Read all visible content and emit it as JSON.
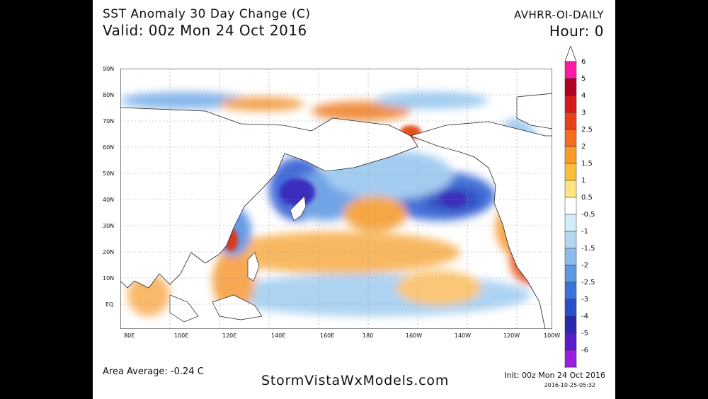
{
  "header": {
    "title": "SST Anomaly 30 Day Change (C)",
    "valid": "Valid: 00z Mon 24 Oct 2016",
    "source": "AVHRR-OI-DAILY",
    "hour": "Hour: 0"
  },
  "footer": {
    "area_average": "Area Average: -0.24 C",
    "website": "StormVistaWxModels.com",
    "init": "Init: 00z Mon 24 Oct 2016",
    "timestamp": "2016-10-25-05:32"
  },
  "map": {
    "lat_labels": [
      "90N",
      "80N",
      "70N",
      "60N",
      "50N",
      "40N",
      "30N",
      "20N",
      "10N",
      "EQ"
    ],
    "lon_labels": [
      "80E",
      "100E",
      "120E",
      "140E",
      "160E",
      "180",
      "160W",
      "140W",
      "120W",
      "100W"
    ]
  },
  "colorbar": {
    "labels": [
      "6",
      "5",
      "4",
      "3",
      "2.5",
      "2",
      "1.5",
      "1",
      "0.5",
      "-0.5",
      "-1",
      "-1.5",
      "-2",
      "-2.5",
      "-3",
      "-4",
      "-5",
      "-6"
    ],
    "colors": [
      "#ff1aa3",
      "#b30022",
      "#d7191c",
      "#e8401a",
      "#f46d1c",
      "#f99a26",
      "#fdbe3c",
      "#fde680",
      "#ffffff",
      "#d4ecf7",
      "#b4d6f1",
      "#8cbcec",
      "#5d9ae3",
      "#3a74d8",
      "#2a4fc9",
      "#2a2ab0",
      "#5a1ccc",
      "#9b1ee0"
    ]
  }
}
